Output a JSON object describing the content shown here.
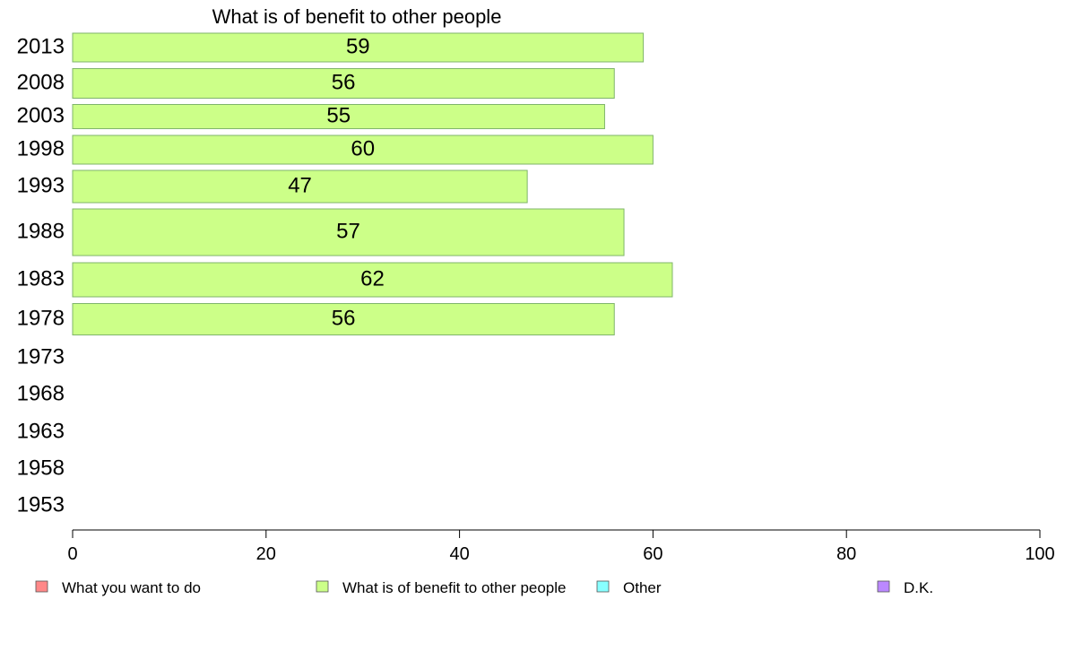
{
  "chart_data": {
    "type": "bar",
    "orientation": "horizontal",
    "title": "What is of benefit to other people",
    "categories": [
      "2013",
      "2008",
      "2003",
      "1998",
      "1993",
      "1988",
      "1983",
      "1978",
      "1973",
      "1968",
      "1963",
      "1958",
      "1953"
    ],
    "series": [
      {
        "name": "What is of benefit to other people",
        "color": "#ccff88",
        "values": [
          59,
          56,
          55,
          60,
          47,
          57,
          62,
          56,
          null,
          null,
          null,
          null,
          null
        ]
      }
    ],
    "xlim": [
      0,
      100
    ],
    "xticks": [
      0,
      20,
      40,
      60,
      80,
      100
    ],
    "grid": false,
    "legend": {
      "placement": "bottom",
      "items": [
        {
          "label": "What you want to do",
          "color": "#ff8888"
        },
        {
          "label": "What is of benefit to other people",
          "color": "#ccff88"
        },
        {
          "label": "Other",
          "color": "#88ffff"
        },
        {
          "label": "D.K.",
          "color": "#bb88ff"
        }
      ]
    }
  }
}
